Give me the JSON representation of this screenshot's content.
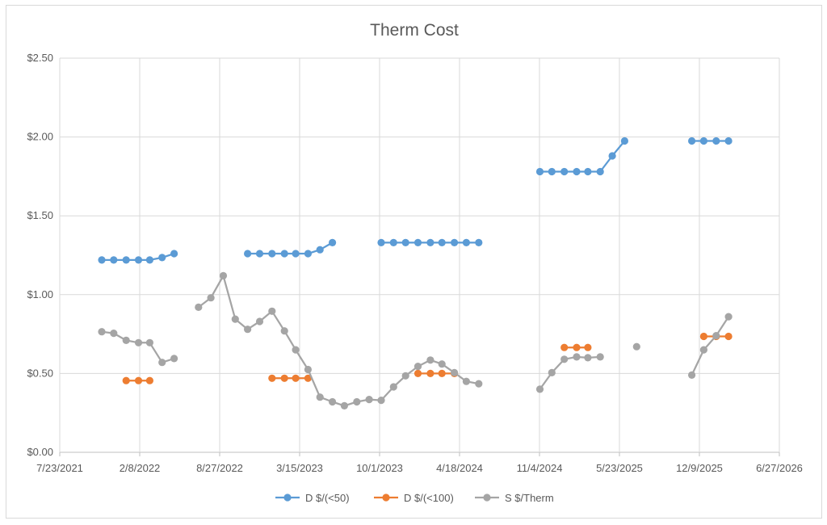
{
  "chart_data": {
    "type": "line",
    "title": "Therm Cost",
    "xlabel": "",
    "ylabel": "",
    "x_axis": {
      "type": "date",
      "min": "2021-07-23",
      "max": "2026-06-27",
      "ticks": [
        "2021-07-23",
        "2022-02-08",
        "2022-08-27",
        "2023-03-15",
        "2023-10-01",
        "2024-04-18",
        "2024-11-04",
        "2025-05-23",
        "2025-12-09",
        "2026-06-27"
      ],
      "tick_labels": [
        "7/23/2021",
        "2/8/2022",
        "8/27/2022",
        "3/15/2023",
        "10/1/2023",
        "4/18/2024",
        "11/4/2024",
        "5/23/2025",
        "12/9/2025",
        "6/27/2026"
      ]
    },
    "y_axis": {
      "min": 0,
      "max": 2.5,
      "ticks": [
        0,
        0.5,
        1,
        1.5,
        2,
        2.5
      ],
      "tick_labels": [
        "$0.00",
        "$0.50",
        "$1.00",
        "$1.50",
        "$2.00",
        "$2.50"
      ]
    },
    "grid": true,
    "legend_position": "bottom",
    "series": [
      {
        "name": "D $/(<50)",
        "color": "#5b9bd5",
        "points": [
          [
            "2021-11-05",
            1.22
          ],
          [
            "2021-12-05",
            1.22
          ],
          [
            "2022-01-05",
            1.22
          ],
          [
            "2022-02-05",
            1.22
          ],
          [
            "2022-03-05",
            1.22
          ],
          [
            "2022-04-05",
            1.235
          ],
          [
            "2022-05-05",
            1.26
          ],
          null,
          [
            "2022-11-05",
            1.26
          ],
          [
            "2022-12-05",
            1.26
          ],
          [
            "2023-01-05",
            1.26
          ],
          [
            "2023-02-05",
            1.26
          ],
          [
            "2023-03-05",
            1.26
          ],
          [
            "2023-04-05",
            1.26
          ],
          [
            "2023-05-05",
            1.285
          ],
          [
            "2023-06-05",
            1.33
          ],
          null,
          [
            "2023-10-05",
            1.33
          ],
          [
            "2023-11-05",
            1.33
          ],
          [
            "2023-12-05",
            1.33
          ],
          [
            "2024-01-05",
            1.33
          ],
          [
            "2024-02-05",
            1.33
          ],
          [
            "2024-03-05",
            1.33
          ],
          [
            "2024-04-05",
            1.33
          ],
          [
            "2024-05-05",
            1.33
          ],
          [
            "2024-06-05",
            1.33
          ],
          null,
          [
            "2024-11-05",
            1.78
          ],
          [
            "2024-12-05",
            1.78
          ],
          [
            "2025-01-05",
            1.78
          ],
          [
            "2025-02-05",
            1.78
          ],
          [
            "2025-03-05",
            1.78
          ],
          [
            "2025-04-05",
            1.78
          ],
          [
            "2025-05-05",
            1.88
          ],
          [
            "2025-06-05",
            1.975
          ],
          null,
          [
            "2025-11-20",
            1.975
          ],
          [
            "2025-12-20",
            1.975
          ],
          [
            "2026-01-20",
            1.975
          ],
          [
            "2026-02-20",
            1.975
          ]
        ]
      },
      {
        "name": "D $/(<100)",
        "color": "#ed7d31",
        "points": [
          [
            "2022-01-05",
            0.455
          ],
          [
            "2022-02-05",
            0.455
          ],
          [
            "2022-03-05",
            0.455
          ],
          null,
          [
            "2023-01-05",
            0.47
          ],
          [
            "2023-02-05",
            0.47
          ],
          [
            "2023-03-05",
            0.47
          ],
          [
            "2023-04-05",
            0.47
          ],
          null,
          [
            "2024-01-05",
            0.5
          ],
          [
            "2024-02-05",
            0.5
          ],
          [
            "2024-03-05",
            0.5
          ],
          [
            "2024-04-05",
            0.5
          ],
          null,
          [
            "2025-01-05",
            0.665
          ],
          [
            "2025-02-05",
            0.665
          ],
          [
            "2025-03-05",
            0.665
          ],
          null,
          [
            "2025-12-20",
            0.735
          ],
          [
            "2026-01-20",
            0.735
          ],
          [
            "2026-02-20",
            0.735
          ]
        ]
      },
      {
        "name": "S $/Therm",
        "color": "#a5a5a5",
        "points": [
          [
            "2021-11-05",
            0.765
          ],
          [
            "2021-12-05",
            0.755
          ],
          [
            "2022-01-05",
            0.71
          ],
          [
            "2022-02-05",
            0.695
          ],
          [
            "2022-03-05",
            0.695
          ],
          [
            "2022-04-05",
            0.57
          ],
          [
            "2022-05-05",
            0.595
          ],
          null,
          [
            "2022-07-05",
            0.92
          ],
          [
            "2022-08-05",
            0.98
          ],
          [
            "2022-09-05",
            1.12
          ],
          [
            "2022-10-05",
            0.845
          ],
          [
            "2022-11-05",
            0.78
          ],
          [
            "2022-12-05",
            0.83
          ],
          [
            "2023-01-05",
            0.895
          ],
          [
            "2023-02-05",
            0.77
          ],
          [
            "2023-03-05",
            0.65
          ],
          [
            "2023-04-05",
            0.525
          ],
          [
            "2023-05-05",
            0.35
          ],
          [
            "2023-06-05",
            0.32
          ],
          [
            "2023-07-05",
            0.295
          ],
          [
            "2023-08-05",
            0.32
          ],
          [
            "2023-09-05",
            0.335
          ],
          [
            "2023-10-05",
            0.33
          ],
          [
            "2023-11-05",
            0.415
          ],
          [
            "2023-12-05",
            0.485
          ],
          [
            "2024-01-05",
            0.545
          ],
          [
            "2024-02-05",
            0.585
          ],
          [
            "2024-03-05",
            0.56
          ],
          [
            "2024-04-05",
            0.505
          ],
          [
            "2024-05-05",
            0.45
          ],
          [
            "2024-06-05",
            0.435
          ],
          null,
          [
            "2024-11-05",
            0.4
          ],
          [
            "2024-12-05",
            0.505
          ],
          [
            "2025-01-05",
            0.59
          ],
          [
            "2025-02-05",
            0.605
          ],
          [
            "2025-03-05",
            0.6
          ],
          [
            "2025-04-05",
            0.605
          ],
          null,
          [
            "2025-07-05",
            0.67
          ],
          null,
          [
            "2025-11-20",
            0.49
          ],
          [
            "2025-12-20",
            0.65
          ],
          [
            "2026-01-20",
            0.74
          ],
          [
            "2026-02-20",
            0.86
          ]
        ]
      }
    ]
  }
}
